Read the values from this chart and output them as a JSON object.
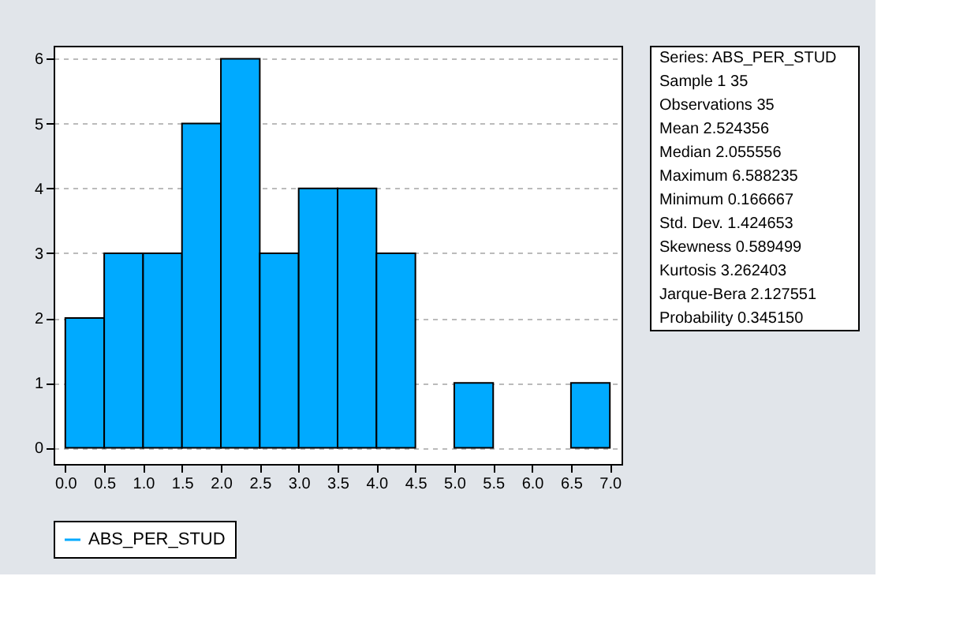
{
  "chart_data": {
    "type": "histogram",
    "bins": [
      0.0,
      0.5,
      1.0,
      1.5,
      2.0,
      2.5,
      3.0,
      3.5,
      4.0,
      4.5,
      5.0,
      5.5,
      6.0,
      6.5,
      7.0
    ],
    "series": [
      {
        "name": "ABS_PER_STUD",
        "color": "#00aaff",
        "values": [
          2,
          3,
          3,
          5,
          6,
          3,
          4,
          4,
          3,
          0,
          1,
          0,
          0,
          1
        ]
      }
    ],
    "xlim": [
      -0.15,
      7.15
    ],
    "xticks": [
      {
        "value": 0,
        "label": "0.0"
      },
      {
        "value": 0.5,
        "label": "0.5"
      },
      {
        "value": 1,
        "label": "1.0"
      },
      {
        "value": 1.5,
        "label": "1.5"
      },
      {
        "value": 2,
        "label": "2.0"
      },
      {
        "value": 2.5,
        "label": "2.5"
      },
      {
        "value": 3,
        "label": "3.0"
      },
      {
        "value": 3.5,
        "label": "3.5"
      },
      {
        "value": 4,
        "label": "4.0"
      },
      {
        "value": 4.5,
        "label": "4.5"
      },
      {
        "value": 5,
        "label": "5.0"
      },
      {
        "value": 5.5,
        "label": "5.5"
      },
      {
        "value": 6,
        "label": "6.0"
      },
      {
        "value": 6.5,
        "label": "6.5"
      },
      {
        "value": 7,
        "label": "7.0"
      }
    ],
    "ylim": [
      -0.25,
      6.2
    ],
    "yticks": [
      0,
      1,
      2,
      3,
      4,
      5,
      6
    ],
    "grid": "y",
    "legend": "bottom",
    "annotations": [
      "Series: ABS_PER_STUD",
      "Sample 1 35",
      "Observations 35",
      "Mean 2.524356",
      "Median 2.055556",
      "Maximum 6.588235",
      "Minimum 0.166667",
      "Std. Dev. 1.424653",
      "Skewness 0.589499",
      "Kurtosis 3.262403",
      "Jarque-Bera 2.127551",
      "Probability 0.345150"
    ]
  }
}
